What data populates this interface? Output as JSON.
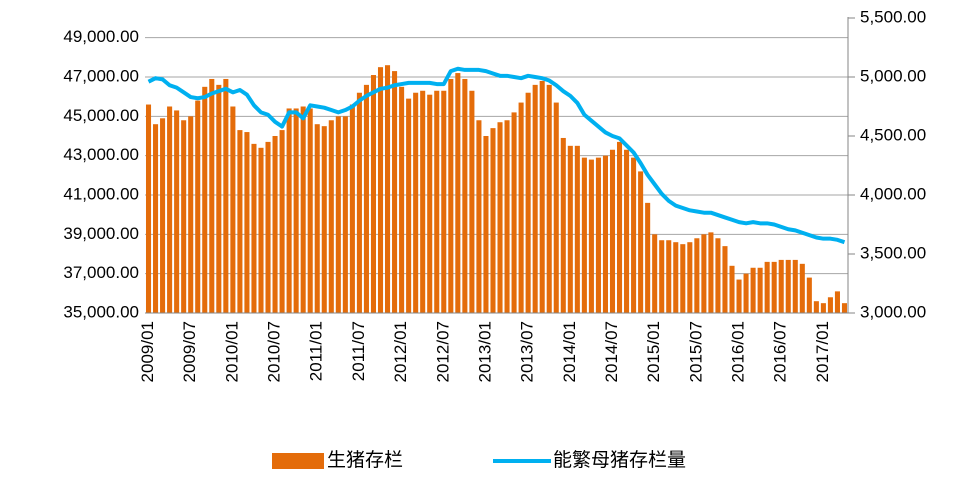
{
  "chart_data": {
    "type": "bar",
    "categories": [
      "2009/01",
      null,
      null,
      null,
      null,
      null,
      "2009/07",
      null,
      null,
      null,
      null,
      null,
      "2010/01",
      null,
      null,
      null,
      null,
      null,
      "2010/07",
      null,
      null,
      null,
      null,
      null,
      "2011/01",
      null,
      null,
      null,
      null,
      null,
      "2011/07",
      null,
      null,
      null,
      null,
      null,
      "2012/01",
      null,
      null,
      null,
      null,
      null,
      "2012/07",
      null,
      null,
      null,
      null,
      null,
      "2013/01",
      null,
      null,
      null,
      null,
      null,
      "2013/07",
      null,
      null,
      null,
      null,
      null,
      "2014/01",
      null,
      null,
      null,
      null,
      null,
      "2014/07",
      null,
      null,
      null,
      null,
      null,
      "2015/01",
      null,
      null,
      null,
      null,
      null,
      "2015/07",
      null,
      null,
      null,
      null,
      null,
      "2016/01",
      null,
      null,
      null,
      null,
      null,
      "2016/07",
      null,
      null,
      null,
      null,
      null,
      "2017/01",
      null,
      null,
      null
    ],
    "series": [
      {
        "name": "生猪存栏",
        "type": "bar",
        "color": "#e46c0a",
        "values": [
          45600,
          44600,
          44900,
          45500,
          45300,
          44800,
          45000,
          45800,
          46500,
          46900,
          46600,
          46900,
          45500,
          44300,
          44200,
          43600,
          43400,
          43700,
          44000,
          44300,
          45400,
          45400,
          45500,
          45400,
          44600,
          44500,
          44800,
          45000,
          45000,
          45600,
          46200,
          46600,
          47100,
          47500,
          47600,
          47300,
          46500,
          45900,
          46200,
          46300,
          46100,
          46300,
          46300,
          46900,
          47200,
          46900,
          46300,
          44800,
          44000,
          44400,
          44700,
          44800,
          45200,
          45700,
          46200,
          46600,
          46800,
          46600,
          45700,
          43900,
          43500,
          43500,
          42900,
          42800,
          42900,
          43000,
          43300,
          43700,
          43300,
          42900,
          42200,
          40600,
          39000,
          38700,
          38700,
          38600,
          38500,
          38600,
          38800,
          39000,
          39100,
          38800,
          38400,
          37400,
          36700,
          37000,
          37300,
          37300,
          37600,
          37600,
          37700,
          37700,
          37700,
          37500,
          36800,
          35600,
          35500,
          35800,
          36100,
          35500
        ]
      },
      {
        "name": "能繁母猪存栏量",
        "type": "line",
        "axis": "y2",
        "color": "#00b0f0",
        "values": [
          4960,
          4990,
          4980,
          4930,
          4910,
          4870,
          4830,
          4820,
          4830,
          4860,
          4880,
          4900,
          4870,
          4890,
          4850,
          4760,
          4700,
          4680,
          4620,
          4580,
          4700,
          4700,
          4650,
          4760,
          4750,
          4740,
          4720,
          4700,
          4720,
          4750,
          4800,
          4840,
          4870,
          4900,
          4910,
          4930,
          4940,
          4950,
          4950,
          4950,
          4950,
          4940,
          4940,
          5050,
          5070,
          5060,
          5060,
          5060,
          5050,
          5030,
          5010,
          5010,
          5000,
          4990,
          5010,
          5000,
          4990,
          4970,
          4930,
          4880,
          4840,
          4780,
          4680,
          4630,
          4580,
          4530,
          4500,
          4480,
          4420,
          4360,
          4270,
          4170,
          4090,
          4010,
          3950,
          3910,
          3890,
          3870,
          3860,
          3850,
          3850,
          3830,
          3810,
          3790,
          3770,
          3760,
          3770,
          3760,
          3760,
          3750,
          3730,
          3710,
          3700,
          3680,
          3660,
          3640,
          3630,
          3630,
          3620,
          3600
        ]
      }
    ],
    "ylim": [
      35000,
      50000
    ],
    "yticks": [
      {
        "value": 35000,
        "label": "35,000.00"
      },
      {
        "value": 37000,
        "label": "37,000.00"
      },
      {
        "value": 39000,
        "label": "39,000.00"
      },
      {
        "value": 41000,
        "label": "41,000.00"
      },
      {
        "value": 43000,
        "label": "43,000.00"
      },
      {
        "value": 45000,
        "label": "45,000.00"
      },
      {
        "value": 47000,
        "label": "47,000.00"
      },
      {
        "value": 49000,
        "label": "49,000.00"
      }
    ],
    "y2lim": [
      3000,
      5500
    ],
    "y2ticks": [
      {
        "value": 3000,
        "label": "3,000.00"
      },
      {
        "value": 3500,
        "label": "3,500.00"
      },
      {
        "value": 4000,
        "label": "4,000.00"
      },
      {
        "value": 4500,
        "label": "4,500.00"
      },
      {
        "value": 5000,
        "label": "5,000.00"
      },
      {
        "value": 5500,
        "label": "5,500.00"
      }
    ],
    "grid": true,
    "legend": "bottom"
  }
}
